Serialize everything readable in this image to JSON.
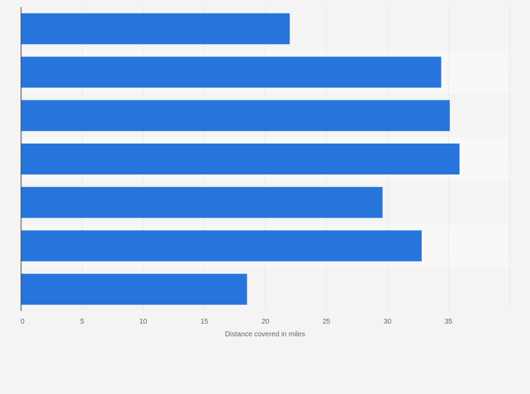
{
  "chart_data": {
    "type": "bar",
    "orientation": "horizontal",
    "title": "",
    "xlabel": "Distance covered in miles",
    "ylabel": "",
    "xlim": [
      0,
      40
    ],
    "x_ticks": [
      0,
      5,
      10,
      15,
      20,
      25,
      30,
      35
    ],
    "categories": [
      "",
      "",
      "",
      "",
      "",
      "",
      ""
    ],
    "values": [
      22.0,
      34.4,
      35.1,
      35.9,
      29.6,
      32.8,
      18.5
    ],
    "grid": true,
    "legend": "none",
    "colors": {
      "bar": "#2775dc",
      "background": "#f4f4f4",
      "band_alt": "#f8f8f8",
      "grid": "#dcdcdc",
      "axis": "#333333",
      "text": "#666666"
    }
  }
}
